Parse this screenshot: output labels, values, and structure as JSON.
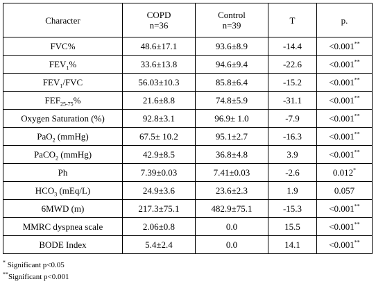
{
  "header": {
    "character": "Character",
    "copd": "COPD",
    "copd_n": "n=36",
    "control": "Control",
    "control_n": "n=39",
    "t": "T",
    "p": "p."
  },
  "rows": [
    {
      "pre": "FVC%",
      "sub": "",
      "post": "",
      "copd": "48.6±17.1",
      "control": "93.6±8.9",
      "t": "-14.4",
      "p": "<0.001",
      "sig": "**"
    },
    {
      "pre": "FEV",
      "sub": "1",
      "post": "%",
      "copd": "33.6±13.8",
      "control": "94.6±9.4",
      "t": "-22.6",
      "p": "<0.001",
      "sig": "**"
    },
    {
      "pre": "FEV",
      "sub": "1",
      "post": "/FVC",
      "copd": "56.03±10.3",
      "control": "85.8±6.4",
      "t": "-15.2",
      "p": "<0.001",
      "sig": "**"
    },
    {
      "pre": "FEF",
      "sub": "25-75",
      "post": "%",
      "copd": "21.6±8.8",
      "control": "74.8±5.9",
      "t": "-31.1",
      "p": "<0.001",
      "sig": "**"
    },
    {
      "pre": "Oxygen Saturation (%)",
      "sub": "",
      "post": "",
      "copd": "92.8±3.1",
      "control": "96.9± 1.0",
      "t": "-7.9",
      "p": "<0.001",
      "sig": "**"
    },
    {
      "pre": "PaO",
      "sub": "2",
      "post": " (mmHg)",
      "copd": "67.5± 10.2",
      "control": "95.1±2.7",
      "t": "-16.3",
      "p": "<0.001",
      "sig": "**"
    },
    {
      "pre": "PaCO",
      "sub": "2",
      "post": " (mmHg)",
      "copd": "42.9±8.5",
      "control": "36.8±4.8",
      "t": "3.9",
      "p": "<0.001",
      "sig": "**"
    },
    {
      "pre": "Ph",
      "sub": "",
      "post": "",
      "copd": "7.39±0.03",
      "control": "7.41±0.03",
      "t": "-2.6",
      "p": "0.012",
      "sig": "*"
    },
    {
      "pre": "HCO",
      "sub": "3",
      "post": " (mEq/L)",
      "copd": "24.9±3.6",
      "control": "23.6±2.3",
      "t": "1.9",
      "p": "0.057",
      "sig": ""
    },
    {
      "pre": "6MWD (m)",
      "sub": "",
      "post": "",
      "copd": "217.3±75.1",
      "control": "482.9±75.1",
      "t": "-15.3",
      "p": "<0.001",
      "sig": "**"
    },
    {
      "pre": "MMRC dyspnea scale",
      "sub": "",
      "post": "",
      "copd": "2.06±0.8",
      "control": "0.0",
      "t": "15.5",
      "p": "<0.001",
      "sig": "**"
    },
    {
      "pre": "BODE Index",
      "sub": "",
      "post": "",
      "copd": "5.4±2.4",
      "control": "0.0",
      "t": "14.1",
      "p": "<0.001",
      "sig": "**"
    }
  ],
  "footnotes": [
    {
      "mark": "*",
      "text": " Significant p<0.05"
    },
    {
      "mark": "**",
      "text": "Significant p<0.001"
    }
  ]
}
